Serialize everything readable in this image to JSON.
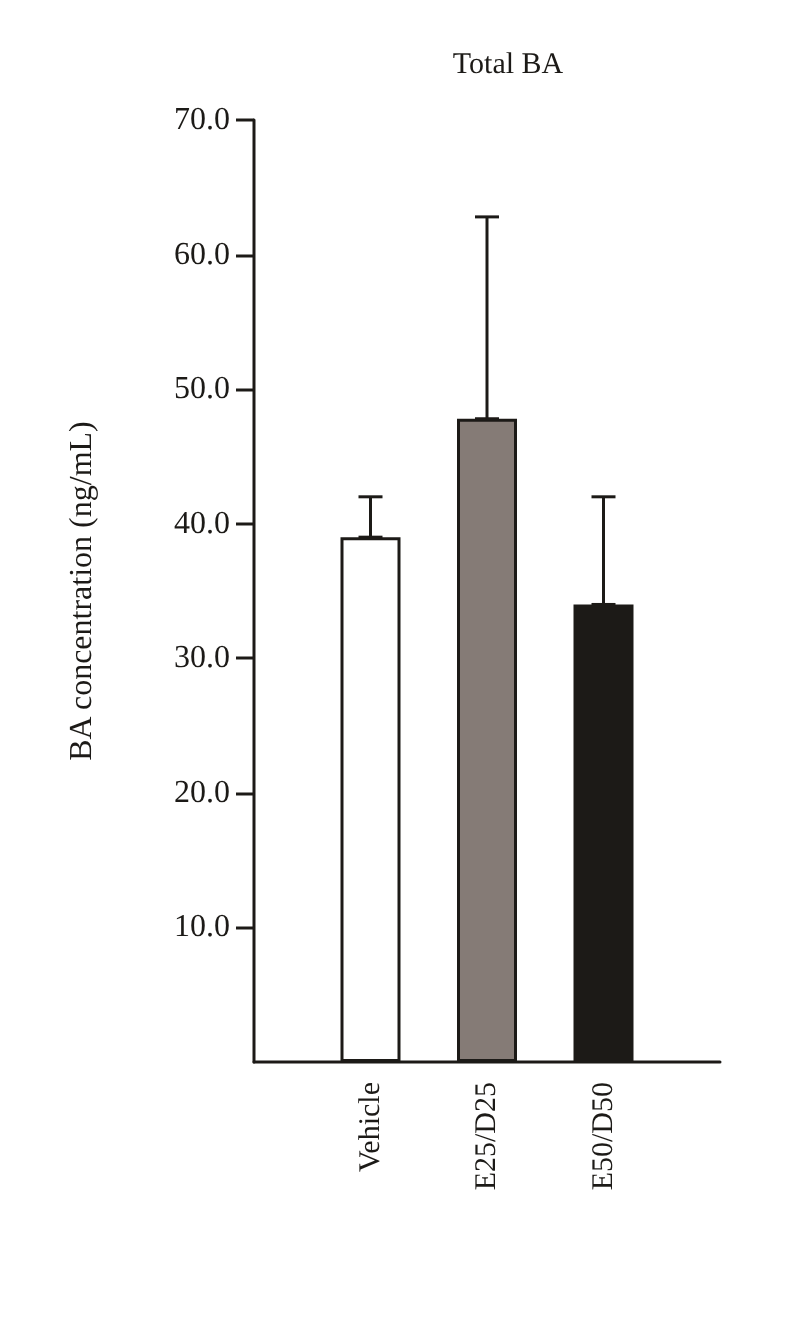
{
  "chart_data": {
    "type": "bar",
    "title": "Total BA",
    "ylabel": "BA concentration (ng/mL)",
    "categories": [
      "Vehicle",
      "E25/D25",
      "E50/D50"
    ],
    "values": [
      39.0,
      47.8,
      34.0
    ],
    "colors": [
      "#ffffff",
      "#857b76",
      "#1c1a17"
    ],
    "errors": [
      [
        39.0,
        42.0
      ],
      [
        47.8,
        62.8
      ],
      [
        34.0,
        42.0
      ]
    ],
    "ylim": [
      0,
      70
    ],
    "yticks": [
      {
        "value": 10,
        "label": "10.0"
      },
      {
        "value": 20,
        "label": "20.0"
      },
      {
        "value": 30,
        "label": "30.0"
      },
      {
        "value": 40,
        "label": "40.0"
      },
      {
        "value": 50,
        "label": "50.0"
      },
      {
        "value": 60,
        "label": "60.0"
      },
      {
        "value": 70,
        "label": "70.0"
      }
    ],
    "grid": false
  }
}
